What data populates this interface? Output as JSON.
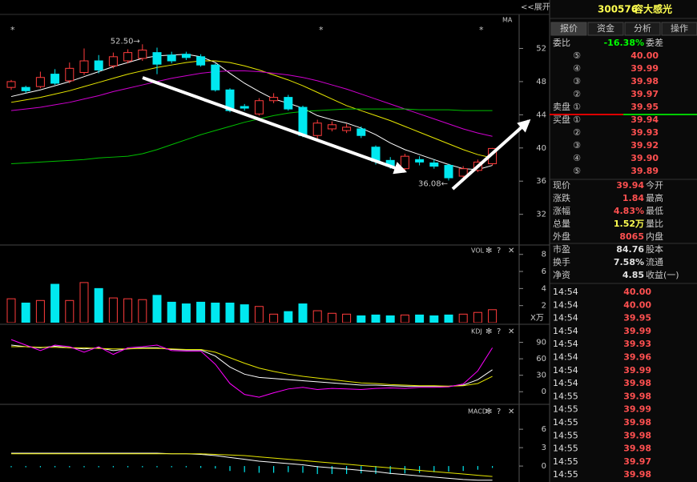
{
  "header": {
    "expand": "<<展开",
    "code": "300576",
    "name": "容大感光"
  },
  "tabs": [
    "报价",
    "资金",
    "分析",
    "操作"
  ],
  "weibi": {
    "label": "委比",
    "value": "-16.38%",
    "label2": "委差",
    "color": "#00ff00"
  },
  "asks": {
    "side": "卖盘",
    "color": "#ff5050",
    "levels": [
      {
        "mark": "⑤",
        "price": "40.00"
      },
      {
        "mark": "④",
        "price": "39.99"
      },
      {
        "mark": "③",
        "price": "39.98"
      },
      {
        "mark": "②",
        "price": "39.97"
      },
      {
        "mark": "①",
        "price": "39.95"
      }
    ]
  },
  "bids": {
    "side": "买盘",
    "color": "#ff5050",
    "levels": [
      {
        "mark": "①",
        "price": "39.94"
      },
      {
        "mark": "②",
        "price": "39.93"
      },
      {
        "mark": "③",
        "price": "39.92"
      },
      {
        "mark": "④",
        "price": "39.90"
      },
      {
        "mark": "⑤",
        "price": "39.89"
      }
    ]
  },
  "stats": [
    {
      "label": "现价",
      "value": "39.94",
      "label2": "今开",
      "color": "#ff5050"
    },
    {
      "label": "涨跌",
      "value": "1.84",
      "label2": "最高",
      "color": "#ff5050"
    },
    {
      "label": "涨幅",
      "value": "4.83%",
      "label2": "最低",
      "color": "#ff5050"
    },
    {
      "label": "总量",
      "value": "1.52万",
      "label2": "量比",
      "color": "#ffff50"
    },
    {
      "label": "外盘",
      "value": "8065",
      "label2": "内盘",
      "color": "#ff5050"
    },
    {
      "label": "市盈",
      "value": "84.76",
      "label2": "股本",
      "color": "#e0e0e0"
    },
    {
      "label": "换手",
      "value": "7.58%",
      "label2": "流通",
      "color": "#e0e0e0"
    },
    {
      "label": "净资",
      "value": "4.85",
      "label2": "收益(一)",
      "color": "#e0e0e0"
    }
  ],
  "trades": {
    "color": "#ff5050",
    "rows": [
      [
        "14:54",
        "40.00"
      ],
      [
        "14:54",
        "40.00"
      ],
      [
        "14:54",
        "39.95"
      ],
      [
        "14:54",
        "39.99"
      ],
      [
        "14:54",
        "39.93"
      ],
      [
        "14:54",
        "39.96"
      ],
      [
        "14:54",
        "39.99"
      ],
      [
        "14:54",
        "39.98"
      ],
      [
        "14:55",
        "39.98"
      ],
      [
        "14:55",
        "39.99"
      ],
      [
        "14:55",
        "39.98"
      ],
      [
        "14:55",
        "39.98"
      ],
      [
        "14:55",
        "39.98"
      ],
      [
        "14:55",
        "39.97"
      ],
      [
        "14:55",
        "39.98"
      ]
    ]
  },
  "tools": [
    "✻",
    "?",
    "✕"
  ],
  "chart_data": [
    {
      "type": "candlestick",
      "label": "MA",
      "markers": [
        "*",
        "*",
        "*"
      ],
      "annotations": [
        "52.50→",
        "36.08←"
      ],
      "open": [
        47.3,
        47.3,
        47.4,
        48.9,
        48.1,
        49.1,
        50.5,
        49.9,
        50.5,
        50.8,
        51.5,
        51.2,
        51.3,
        51.0,
        50.0,
        47.0,
        45.0,
        44.1,
        45.7,
        46.1,
        44.9,
        41.5,
        42.3,
        42.1,
        42.3,
        40.1,
        38.5,
        37.5,
        38.6,
        38.2,
        37.9,
        36.6,
        37.3,
        38.1
      ],
      "high": [
        48.2,
        47.5,
        49.2,
        49.5,
        50.3,
        52.0,
        51.2,
        51.5,
        51.9,
        52.5,
        52.1,
        51.6,
        51.6,
        51.3,
        50.2,
        47.2,
        45.3,
        46.0,
        46.6,
        46.4,
        45.1,
        43.4,
        43.2,
        42.9,
        42.6,
        40.3,
        38.9,
        39.3,
        39.0,
        38.6,
        38.1,
        37.8,
        38.6,
        40.0
      ],
      "low": [
        47.0,
        46.6,
        47.2,
        47.6,
        47.8,
        48.8,
        49.0,
        49.6,
        50.2,
        50.5,
        48.9,
        50.2,
        50.6,
        49.8,
        46.8,
        44.3,
        44.5,
        43.9,
        45.4,
        44.5,
        41.3,
        41.0,
        42.0,
        41.8,
        41.2,
        38.0,
        37.5,
        37.2,
        37.9,
        37.5,
        36.08,
        36.3,
        37.1,
        37.9
      ],
      "close": [
        48.0,
        46.9,
        48.5,
        47.8,
        49.6,
        50.5,
        49.4,
        51.0,
        51.5,
        51.8,
        50.1,
        50.5,
        50.9,
        50.0,
        47.0,
        44.5,
        44.8,
        45.7,
        46.1,
        44.7,
        41.5,
        43.0,
        42.8,
        42.5,
        41.5,
        38.4,
        37.8,
        39.0,
        38.3,
        37.8,
        36.4,
        37.5,
        38.3,
        39.94
      ],
      "up_color": "#ff3c3c",
      "down_color": "#00e8f0",
      "ma": [
        {
          "color": "#ffffff",
          "values": [
            46.2,
            46.6,
            47.0,
            47.5,
            48.0,
            48.6,
            49.2,
            49.8,
            50.3,
            50.8,
            51.1,
            51.2,
            51.3,
            51.0,
            50.3,
            49.0,
            47.8,
            46.8,
            45.9,
            45.4,
            44.8,
            43.9,
            43.4,
            43.0,
            42.4,
            41.6,
            40.6,
            39.8,
            39.2,
            38.6,
            38.0,
            37.5,
            37.4,
            37.9
          ]
        },
        {
          "color": "#e6e600",
          "values": [
            45.5,
            45.8,
            46.1,
            46.5,
            46.9,
            47.4,
            47.9,
            48.4,
            48.9,
            49.3,
            49.7,
            50.0,
            50.3,
            50.5,
            50.5,
            50.3,
            49.9,
            49.4,
            48.8,
            48.2,
            47.5,
            46.7,
            45.9,
            45.1,
            44.5,
            43.9,
            43.3,
            42.6,
            41.9,
            41.2,
            40.5,
            39.8,
            39.2,
            38.8
          ]
        },
        {
          "color": "#d000d0",
          "values": [
            44.5,
            44.7,
            44.9,
            45.2,
            45.5,
            45.9,
            46.3,
            46.8,
            47.2,
            47.6,
            48.0,
            48.4,
            48.7,
            49.0,
            49.2,
            49.3,
            49.3,
            49.2,
            49.0,
            48.8,
            48.5,
            48.1,
            47.6,
            47.1,
            46.5,
            45.9,
            45.3,
            44.7,
            44.1,
            43.5,
            42.9,
            42.3,
            41.8,
            41.4
          ]
        },
        {
          "color": "#00c000",
          "values": [
            38.1,
            38.2,
            38.3,
            38.4,
            38.5,
            38.6,
            38.8,
            38.9,
            39.0,
            39.3,
            39.8,
            40.4,
            41.0,
            41.6,
            42.1,
            42.6,
            43.1,
            43.5,
            43.9,
            44.2,
            44.4,
            44.5,
            44.6,
            44.7,
            44.7,
            44.7,
            44.7,
            44.7,
            44.6,
            44.6,
            44.6,
            44.5,
            44.5,
            44.5
          ]
        }
      ],
      "ylim": [
        28.3,
        56.1
      ],
      "yticks": [
        32,
        36,
        40,
        44,
        48,
        52
      ]
    },
    {
      "type": "bar",
      "label": "VOL",
      "unit": "X万",
      "values": [
        2.8,
        2.3,
        2.6,
        4.5,
        2.6,
        4.7,
        4.0,
        2.9,
        2.8,
        2.7,
        3.2,
        2.4,
        2.2,
        2.4,
        2.3,
        2.3,
        2.1,
        1.9,
        1.0,
        1.3,
        2.2,
        1.4,
        1.1,
        1.0,
        0.8,
        0.9,
        0.8,
        0.9,
        0.9,
        0.8,
        0.9,
        1.0,
        1.2,
        1.52
      ],
      "ylim": [
        0,
        9.1
      ],
      "yticks": [
        2,
        4,
        6,
        8
      ]
    },
    {
      "type": "line",
      "label": "KDJ",
      "series": [
        {
          "color": "#ffffff",
          "values": [
            85,
            82,
            80,
            83,
            80,
            78,
            80,
            75,
            78,
            80,
            80,
            77,
            76,
            76,
            65,
            45,
            32,
            26,
            24,
            22,
            20,
            18,
            16,
            14,
            12,
            12,
            11,
            10,
            10,
            10,
            10,
            12,
            22,
            40
          ]
        },
        {
          "color": "#e6e600",
          "values": [
            82,
            82,
            81,
            81,
            80,
            80,
            79,
            78,
            78,
            79,
            79,
            78,
            77,
            77,
            72,
            62,
            52,
            43,
            37,
            32,
            28,
            25,
            22,
            19,
            16,
            15,
            13,
            12,
            11,
            11,
            10,
            11,
            15,
            28
          ]
        },
        {
          "color": "#ff00ff",
          "values": [
            95,
            85,
            75,
            85,
            82,
            72,
            82,
            68,
            80,
            82,
            85,
            75,
            74,
            74,
            50,
            15,
            -5,
            -10,
            -2,
            5,
            8,
            4,
            6,
            5,
            4,
            6,
            7,
            6,
            8,
            8,
            9,
            14,
            38,
            80
          ]
        }
      ],
      "ylim": [
        -23,
        120
      ],
      "yticks": [
        0,
        30,
        60,
        90
      ]
    },
    {
      "type": "macd",
      "label": "MACD",
      "series": [
        {
          "color": "#ffffff",
          "values": [
            2.1,
            2.1,
            2.1,
            2.1,
            2.1,
            2.1,
            2.1,
            2.1,
            2.1,
            2.1,
            2.1,
            2.0,
            2.0,
            1.9,
            1.7,
            1.4,
            1.1,
            0.8,
            0.6,
            0.4,
            0.2,
            -0.1,
            -0.3,
            -0.5,
            -0.7,
            -0.9,
            -1.2,
            -1.4,
            -1.6,
            -1.8,
            -2.0,
            -2.2,
            -2.3,
            -2.3
          ]
        },
        {
          "color": "#e6e600",
          "values": [
            2.0,
            2.0,
            2.0,
            2.0,
            2.0,
            2.0,
            2.0,
            2.0,
            2.0,
            2.0,
            2.0,
            2.0,
            2.0,
            2.0,
            1.9,
            1.8,
            1.7,
            1.5,
            1.3,
            1.1,
            0.9,
            0.7,
            0.5,
            0.3,
            0.1,
            -0.1,
            -0.3,
            -0.5,
            -0.7,
            -0.9,
            -1.1,
            -1.3,
            -1.5,
            -1.7
          ]
        }
      ],
      "histogram": [
        -0.2,
        -0.2,
        -0.2,
        -0.2,
        -0.2,
        -0.2,
        -0.2,
        -0.2,
        -0.2,
        -0.2,
        -0.2,
        -0.2,
        -0.2,
        -0.3,
        -0.4,
        -0.8,
        -1.0,
        -1.1,
        -1.1,
        -1.0,
        -1.1,
        -1.3,
        -1.3,
        -1.3,
        -1.2,
        -1.3,
        -1.3,
        -1.2,
        -1.1,
        -1.0,
        -0.9,
        -0.8,
        -0.6,
        -0.3
      ],
      "hist_color": "#00e8f0",
      "ylim": [
        -2.6,
        9.8
      ],
      "yticks": [
        0,
        3,
        6
      ]
    }
  ]
}
